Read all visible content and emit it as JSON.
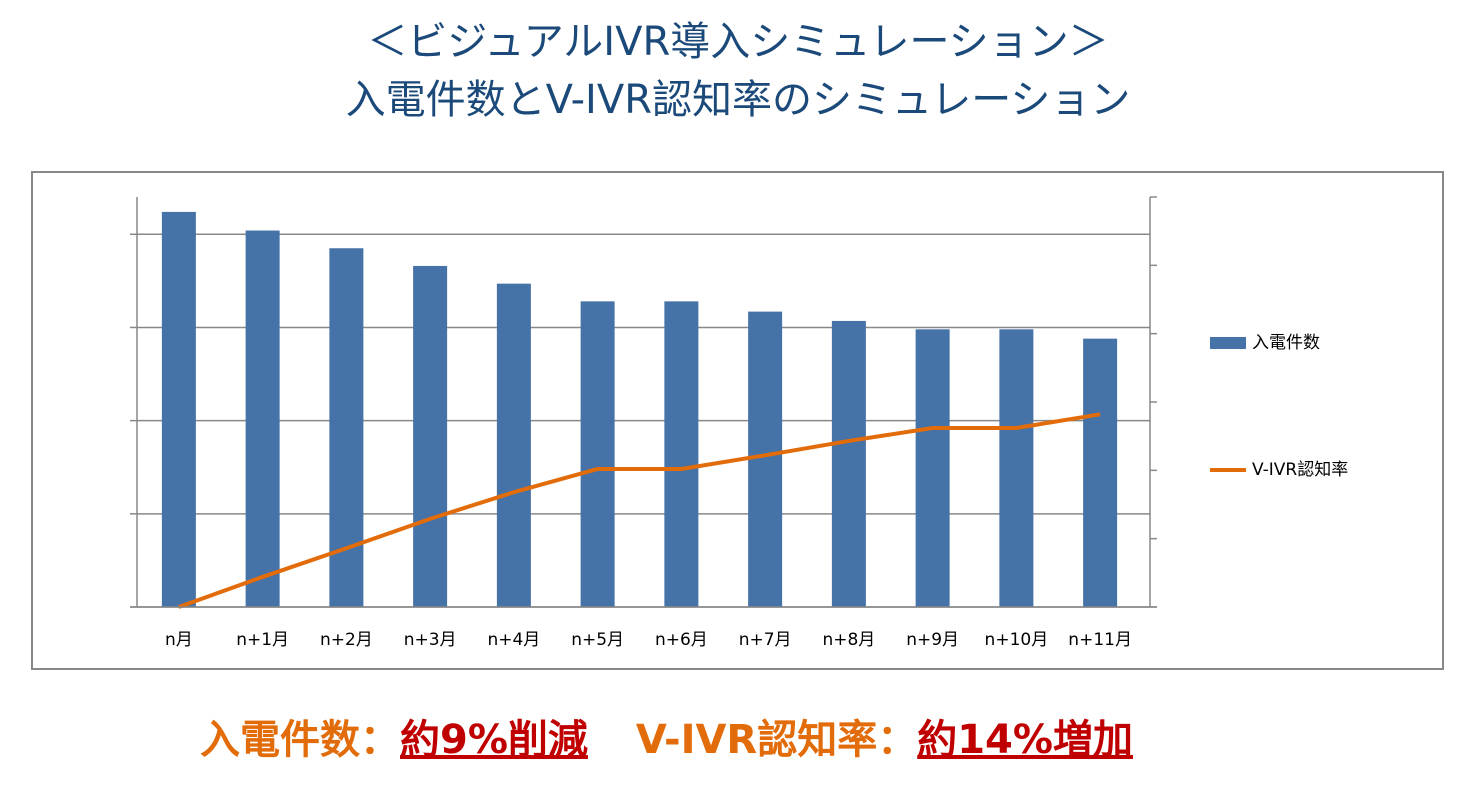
{
  "chart_data": {
    "type": "bar-line",
    "title": [
      "＜ビジュアルIVR導入シミュレーション＞",
      "入電件数とV-IVR認知率のシミュレーション"
    ],
    "categories": [
      "n月",
      "n+1月",
      "n+2月",
      "n+3月",
      "n+4月",
      "n+5月",
      "n+6月",
      "n+7月",
      "n+8月",
      "n+9月",
      "n+10月",
      "n+11月"
    ],
    "series": [
      {
        "name": "入電件数",
        "type": "bar",
        "color": "#4572a7",
        "values": [
          4.24,
          4.04,
          3.85,
          3.66,
          3.47,
          3.28,
          3.28,
          3.17,
          3.07,
          2.98,
          2.98,
          2.88
        ]
      },
      {
        "name": "V-IVR認知率",
        "type": "line",
        "axis": "y2",
        "color": "#e36c0a",
        "values": [
          0,
          0.44,
          0.86,
          1.29,
          1.68,
          2.02,
          2.02,
          2.22,
          2.43,
          2.62,
          2.62,
          2.82
        ]
      }
    ],
    "ylim": [
      0,
      4.4
    ],
    "yticks": [
      0,
      1,
      2,
      3,
      4
    ],
    "y2lim": [
      0,
      6
    ],
    "y2ticks": [
      0,
      1,
      2,
      3,
      4,
      5,
      6
    ],
    "grid": true,
    "legend": "right",
    "summary": [
      "入電件数：",
      "約9%削減",
      "V-IVR認知率：",
      "約14%増加"
    ]
  }
}
